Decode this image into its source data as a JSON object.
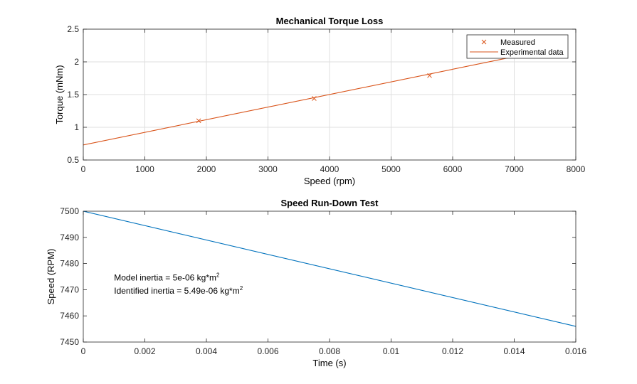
{
  "chart_data": [
    {
      "type": "line",
      "title": "Mechanical Torque Loss",
      "xlabel": "Speed (rpm)",
      "ylabel": "Torque (mNm)",
      "xlim": [
        0,
        8000
      ],
      "ylim": [
        0.5,
        2.5
      ],
      "xticks": [
        "0",
        "1000",
        "2000",
        "3000",
        "4000",
        "5000",
        "6000",
        "7000",
        "8000"
      ],
      "yticks": [
        "0.5",
        "1",
        "1.5",
        "2",
        "2.5"
      ],
      "grid": true,
      "legend_position": "top-right",
      "series": [
        {
          "name": "Measured",
          "marker": "x",
          "color": "#D95319",
          "x": [
            1875,
            3750,
            5625
          ],
          "y": [
            1.1,
            1.44,
            1.79
          ]
        },
        {
          "name": "Experimental data",
          "style": "line",
          "color": "#D95319",
          "x": [
            0,
            6950
          ],
          "y": [
            0.73,
            2.07
          ]
        }
      ]
    },
    {
      "type": "line",
      "title": "Speed Run-Down Test",
      "xlabel": "Time (s)",
      "ylabel": "Speed (RPM)",
      "xlim": [
        0,
        0.016
      ],
      "ylim": [
        7450,
        7500
      ],
      "xticks": [
        "0",
        "0.002",
        "0.004",
        "0.006",
        "0.008",
        "0.01",
        "0.012",
        "0.014",
        "0.016"
      ],
      "yticks": [
        "7450",
        "7460",
        "7470",
        "7480",
        "7490",
        "7500"
      ],
      "grid": false,
      "series": [
        {
          "style": "line",
          "color": "#0072BD",
          "x": [
            0,
            0.016
          ],
          "y": [
            7500,
            7456
          ]
        }
      ],
      "annotations": [
        {
          "text": "Model  inertia  =  5e-06  kg*m",
          "sup": "2",
          "x": 0.001,
          "y": 7473.5
        },
        {
          "text": "Identified  inertia  =  5.49e-06  kg*m",
          "sup": "2",
          "x": 0.001,
          "y": 7468.5
        }
      ]
    }
  ]
}
